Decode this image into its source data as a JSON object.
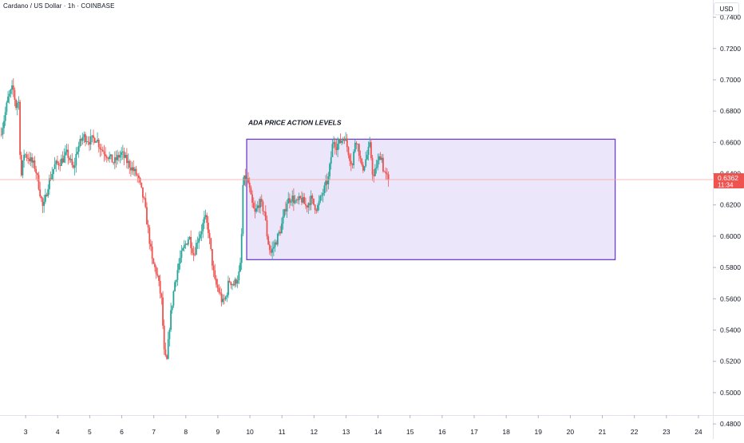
{
  "header": {
    "symbol": "Cardano / US Dollar · 1h · COINBASE",
    "currency": "USD"
  },
  "colors": {
    "up": "#26a69a",
    "down": "#ef5350",
    "box_border": "#6d3fc9",
    "box_fill": "#ece6fb",
    "price_label_bg": "#ef5350",
    "price_line": "#f4a6a4",
    "axis_text": "#131722"
  },
  "chart_data": {
    "type": "candlestick",
    "title": "Cardano / US Dollar · 1h · COINBASE",
    "ylim": [
      0.478,
      0.751
    ],
    "y_ticks": [
      "0.7400",
      "0.7200",
      "0.7000",
      "0.6800",
      "0.6600",
      "0.6400",
      "0.6200",
      "0.6000",
      "0.5800",
      "0.5600",
      "0.5400",
      "0.5200",
      "0.5000",
      "0.4800"
    ],
    "y_tick_values": [
      0.74,
      0.72,
      0.7,
      0.68,
      0.66,
      0.64,
      0.62,
      0.6,
      0.58,
      0.56,
      0.54,
      0.52,
      0.5,
      0.48
    ],
    "x_ticks": [
      "3",
      "4",
      "5",
      "6",
      "7",
      "8",
      "9",
      "10",
      "11",
      "12",
      "13",
      "14",
      "15",
      "16",
      "17",
      "18",
      "19",
      "20",
      "21",
      "22",
      "23",
      "24"
    ],
    "x_range_days": [
      2.2,
      24.45
    ],
    "last_price": "0.6362",
    "countdown": "11:34",
    "annotation": {
      "text": "ADA PRICE ACTION LEVELS",
      "box_top": 0.662,
      "box_bottom": 0.585,
      "box_start_day": 9.9,
      "box_end_day": 21.4
    },
    "price_path": [
      [
        2.2,
        0.665
      ],
      [
        2.3,
        0.672
      ],
      [
        2.45,
        0.688
      ],
      [
        2.6,
        0.695
      ],
      [
        2.7,
        0.683
      ],
      [
        2.78,
        0.688
      ],
      [
        2.85,
        0.636
      ],
      [
        2.95,
        0.653
      ],
      [
        3.1,
        0.65
      ],
      [
        3.3,
        0.644
      ],
      [
        3.45,
        0.628
      ],
      [
        3.55,
        0.617
      ],
      [
        3.7,
        0.633
      ],
      [
        3.9,
        0.645
      ],
      [
        4.1,
        0.648
      ],
      [
        4.3,
        0.653
      ],
      [
        4.5,
        0.642
      ],
      [
        4.6,
        0.655
      ],
      [
        4.8,
        0.664
      ],
      [
        5.0,
        0.661
      ],
      [
        5.2,
        0.663
      ],
      [
        5.35,
        0.656
      ],
      [
        5.55,
        0.652
      ],
      [
        5.75,
        0.647
      ],
      [
        5.9,
        0.651
      ],
      [
        6.0,
        0.653
      ],
      [
        6.15,
        0.648
      ],
      [
        6.3,
        0.644
      ],
      [
        6.5,
        0.638
      ],
      [
        6.7,
        0.622
      ],
      [
        6.85,
        0.6
      ],
      [
        6.95,
        0.584
      ],
      [
        7.1,
        0.576
      ],
      [
        7.25,
        0.558
      ],
      [
        7.32,
        0.526
      ],
      [
        7.4,
        0.518
      ],
      [
        7.5,
        0.545
      ],
      [
        7.65,
        0.57
      ],
      [
        7.8,
        0.584
      ],
      [
        7.95,
        0.593
      ],
      [
        8.1,
        0.6
      ],
      [
        8.25,
        0.588
      ],
      [
        8.35,
        0.597
      ],
      [
        8.5,
        0.605
      ],
      [
        8.6,
        0.612
      ],
      [
        8.7,
        0.604
      ],
      [
        8.8,
        0.587
      ],
      [
        8.9,
        0.571
      ],
      [
        9.05,
        0.564
      ],
      [
        9.15,
        0.557
      ],
      [
        9.25,
        0.561
      ],
      [
        9.35,
        0.572
      ],
      [
        9.5,
        0.569
      ],
      [
        9.65,
        0.575
      ],
      [
        9.72,
        0.583
      ],
      [
        9.78,
        0.632
      ],
      [
        9.85,
        0.638
      ],
      [
        9.95,
        0.634
      ],
      [
        10.05,
        0.622
      ],
      [
        10.15,
        0.614
      ],
      [
        10.3,
        0.622
      ],
      [
        10.45,
        0.616
      ],
      [
        10.55,
        0.598
      ],
      [
        10.65,
        0.589
      ],
      [
        10.8,
        0.596
      ],
      [
        10.95,
        0.604
      ],
      [
        11.05,
        0.612
      ],
      [
        11.15,
        0.622
      ],
      [
        11.3,
        0.625
      ],
      [
        11.45,
        0.621
      ],
      [
        11.6,
        0.624
      ],
      [
        11.75,
        0.619
      ],
      [
        11.9,
        0.624
      ],
      [
        12.0,
        0.62
      ],
      [
        12.1,
        0.618
      ],
      [
        12.3,
        0.629
      ],
      [
        12.45,
        0.637
      ],
      [
        12.6,
        0.662
      ],
      [
        12.7,
        0.658
      ],
      [
        12.85,
        0.661
      ],
      [
        12.95,
        0.664
      ],
      [
        13.1,
        0.652
      ],
      [
        13.2,
        0.645
      ],
      [
        13.3,
        0.664
      ],
      [
        13.4,
        0.655
      ],
      [
        13.5,
        0.642
      ],
      [
        13.6,
        0.648
      ],
      [
        13.75,
        0.658
      ],
      [
        13.85,
        0.636
      ],
      [
        13.95,
        0.645
      ],
      [
        14.1,
        0.653
      ],
      [
        14.15,
        0.644
      ],
      [
        14.25,
        0.638
      ],
      [
        14.35,
        0.6362
      ]
    ]
  }
}
